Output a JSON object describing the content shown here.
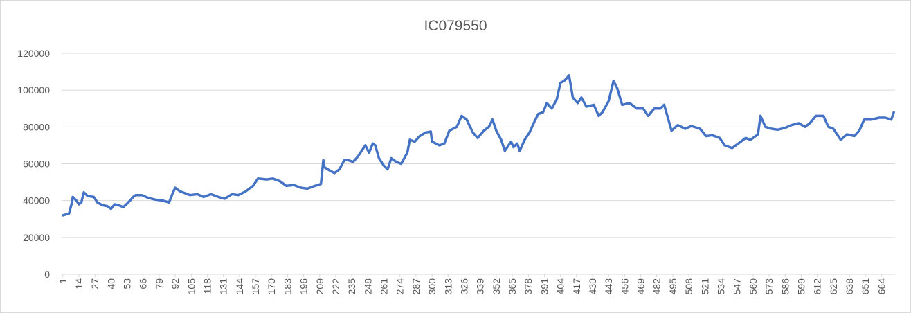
{
  "chart_data": {
    "type": "line",
    "title": "IC079550",
    "x": [
      1,
      6,
      8,
      9,
      12,
      14,
      16,
      18,
      21,
      26,
      29,
      33,
      37,
      40,
      43,
      46,
      50,
      54,
      58,
      60,
      65,
      70,
      76,
      82,
      87,
      90,
      92,
      96,
      100,
      104,
      110,
      115,
      121,
      127,
      132,
      138,
      143,
      149,
      155,
      159,
      166,
      171,
      177,
      182,
      188,
      194,
      199,
      205,
      210,
      212,
      213,
      218,
      221,
      225,
      229,
      232,
      236,
      240,
      244,
      246,
      249,
      252,
      254,
      257,
      261,
      264,
      267,
      271,
      275,
      280,
      282,
      286,
      290,
      295,
      299,
      300,
      306,
      310,
      314,
      320,
      324,
      328,
      333,
      337,
      342,
      346,
      349,
      352,
      356,
      359,
      364,
      366,
      369,
      371,
      375,
      379,
      383,
      386,
      390,
      393,
      397,
      401,
      404,
      407,
      411,
      414,
      418,
      421,
      425,
      431,
      435,
      438,
      443,
      447,
      450,
      454,
      460,
      466,
      471,
      475,
      480,
      485,
      488,
      491,
      494,
      499,
      505,
      510,
      517,
      522,
      527,
      533,
      537,
      543,
      548,
      554,
      558,
      564,
      566,
      570,
      575,
      580,
      586,
      591,
      597,
      602,
      606,
      611,
      617,
      621,
      625,
      631,
      636,
      642,
      646,
      650,
      656,
      662,
      667,
      672,
      674
    ],
    "series": [
      {
        "name": "IC079550",
        "color": "#4472c4",
        "values": [
          32000,
          33000,
          38000,
          42000,
          40000,
          38000,
          39000,
          44500,
          42500,
          42000,
          39000,
          37500,
          37000,
          35500,
          38000,
          37500,
          36500,
          39000,
          42000,
          43000,
          43000,
          41500,
          40500,
          40000,
          39000,
          44000,
          47000,
          45000,
          44000,
          43000,
          43500,
          42000,
          43500,
          42000,
          41000,
          43500,
          43000,
          45000,
          48000,
          52000,
          51500,
          52000,
          50500,
          48000,
          48500,
          47000,
          46500,
          48000,
          49000,
          62000,
          58000,
          56000,
          55000,
          57000,
          62000,
          62000,
          61000,
          64000,
          68000,
          70000,
          66000,
          71000,
          70000,
          63000,
          59000,
          57000,
          63000,
          61000,
          60000,
          66000,
          73000,
          72000,
          75000,
          77000,
          77500,
          72000,
          70000,
          71000,
          78000,
          80000,
          86000,
          84000,
          77000,
          74000,
          78000,
          80000,
          84000,
          78000,
          73000,
          67000,
          72000,
          69000,
          71000,
          67000,
          73000,
          77000,
          83000,
          87000,
          88000,
          93000,
          90000,
          95000,
          104000,
          105000,
          108000,
          96000,
          93000,
          96000,
          91000,
          92000,
          86000,
          88000,
          94000,
          105000,
          101000,
          92000,
          93000,
          90000,
          90000,
          86000,
          90000,
          90000,
          92000,
          85000,
          78000,
          81000,
          79000,
          80500,
          79000,
          75000,
          75500,
          74000,
          70000,
          68500,
          71000,
          74000,
          73000,
          76000,
          86000,
          80000,
          79000,
          78500,
          79500,
          81000,
          82000,
          80000,
          82000,
          86000,
          86000,
          80000,
          79000,
          73000,
          76000,
          75000,
          78000,
          84000,
          84000,
          85000,
          85000,
          84000,
          88000
        ]
      }
    ],
    "xlim": [
      0,
      675
    ],
    "xticks": [
      1,
      14,
      27,
      40,
      53,
      66,
      79,
      92,
      105,
      118,
      131,
      144,
      157,
      170,
      183,
      196,
      209,
      222,
      235,
      248,
      261,
      274,
      287,
      300,
      313,
      326,
      339,
      352,
      365,
      378,
      391,
      404,
      417,
      430,
      443,
      456,
      469,
      482,
      495,
      508,
      521,
      534,
      547,
      560,
      573,
      586,
      599,
      612,
      625,
      638,
      651,
      664
    ],
    "ylim": [
      0,
      120000
    ],
    "yticks": [
      0,
      20000,
      40000,
      60000,
      80000,
      100000,
      120000
    ],
    "grid": true
  }
}
